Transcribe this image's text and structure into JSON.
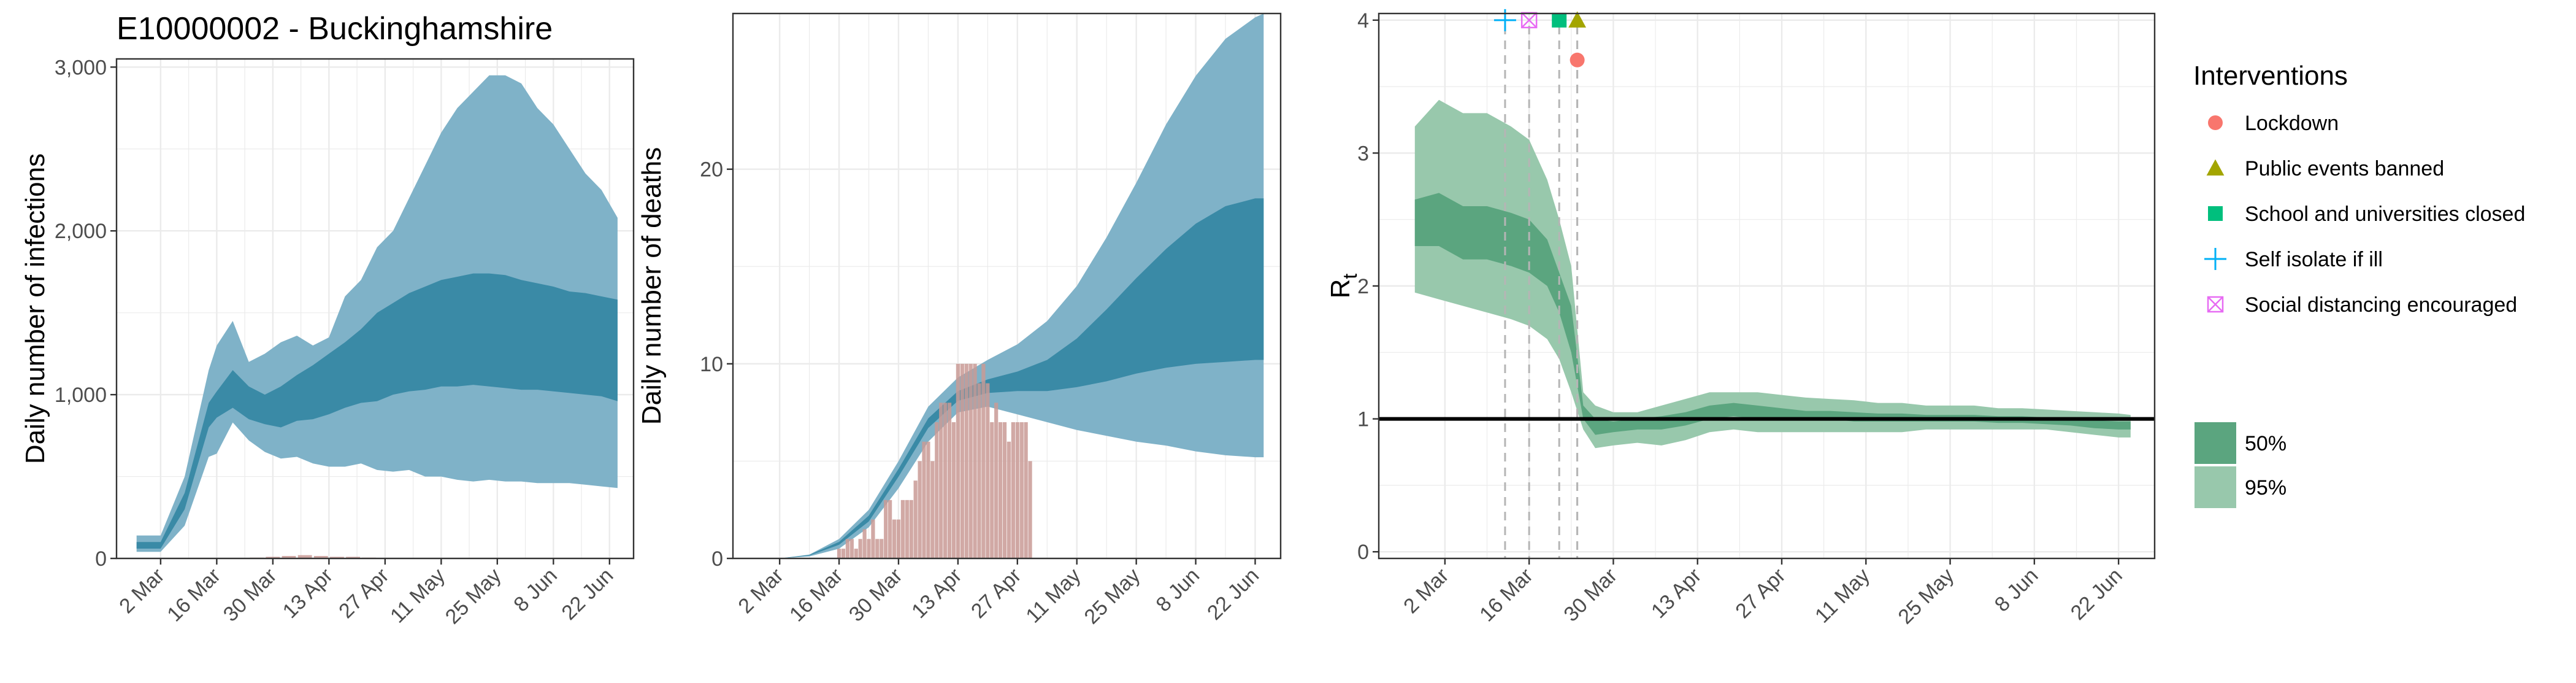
{
  "figure_title": "E10000002 - Buckinghamshire",
  "colors": {
    "infection_band": "#7fb2c8",
    "infection_inner": "#3a8aa6",
    "death_bar": "#c99a95",
    "rt_95": "#98c8ac",
    "rt_50": "#5ba57f",
    "grid": "#ebebeb",
    "lockdown": "#F8766D",
    "public_events_banned": "#A3A500",
    "school_closed": "#00BF7D",
    "self_isolate": "#00B0F6",
    "social_distancing": "#E76BF3"
  },
  "x_tick_labels": [
    "2 Mar",
    "16 Mar",
    "30 Mar",
    "13 Apr",
    "27 Apr",
    "11 May",
    "25 May",
    "8 Jun",
    "22 Jun"
  ],
  "legend": {
    "interventions_title": "Interventions",
    "interventions": [
      {
        "label": "Lockdown",
        "shape": "circle",
        "color": "#F8766D"
      },
      {
        "label": "Public events banned",
        "shape": "triangle",
        "color": "#A3A500"
      },
      {
        "label": "School and universities closed",
        "shape": "square",
        "color": "#00BF7D"
      },
      {
        "label": "Self isolate if ill",
        "shape": "plus",
        "color": "#00B0F6"
      },
      {
        "label": "Social distancing encouraged",
        "shape": "boxx",
        "color": "#E76BF3"
      }
    ],
    "ci_items": [
      {
        "label": "50%",
        "color": "#5ba57f"
      },
      {
        "label": "95%",
        "color": "#98c8ac"
      }
    ]
  },
  "chart_data": [
    {
      "type": "area",
      "ylabel": "Daily number of infections",
      "x_type": "date",
      "xlim": [
        "2020-02-20",
        "2020-06-28"
      ],
      "ylim": [
        0,
        3050
      ],
      "y_ticks": [
        0,
        1000,
        2000,
        3000
      ],
      "y_tick_labels": [
        "0",
        "1,000",
        "2,000",
        "3,000"
      ],
      "grid": true,
      "x": [
        "2020-02-25",
        "2020-03-02",
        "2020-03-08",
        "2020-03-14",
        "2020-03-16",
        "2020-03-20",
        "2020-03-24",
        "2020-03-28",
        "2020-04-01",
        "2020-04-05",
        "2020-04-09",
        "2020-04-13",
        "2020-04-17",
        "2020-04-21",
        "2020-04-25",
        "2020-04-29",
        "2020-05-03",
        "2020-05-07",
        "2020-05-11",
        "2020-05-15",
        "2020-05-19",
        "2020-05-23",
        "2020-05-27",
        "2020-05-31",
        "2020-06-04",
        "2020-06-08",
        "2020-06-12",
        "2020-06-16",
        "2020-06-20",
        "2020-06-24"
      ],
      "series": [
        {
          "band": "95%",
          "lower": [
            40,
            40,
            200,
            620,
            640,
            830,
            720,
            650,
            610,
            620,
            580,
            560,
            560,
            580,
            540,
            530,
            540,
            500,
            500,
            480,
            470,
            480,
            470,
            470,
            460,
            460,
            460,
            450,
            440,
            430
          ],
          "upper": [
            140,
            140,
            500,
            1150,
            1300,
            1450,
            1200,
            1250,
            1320,
            1360,
            1300,
            1350,
            1600,
            1700,
            1900,
            2000,
            2200,
            2400,
            2600,
            2750,
            2850,
            2950,
            2950,
            2900,
            2750,
            2650,
            2500,
            2350,
            2250,
            2080
          ]
        },
        {
          "band": "50%",
          "lower": [
            60,
            60,
            300,
            800,
            860,
            920,
            850,
            820,
            800,
            840,
            850,
            880,
            920,
            950,
            960,
            1000,
            1020,
            1030,
            1050,
            1050,
            1060,
            1050,
            1040,
            1030,
            1030,
            1020,
            1010,
            1000,
            990,
            960
          ],
          "upper": [
            100,
            100,
            400,
            950,
            1020,
            1150,
            1050,
            1000,
            1050,
            1120,
            1180,
            1250,
            1320,
            1400,
            1500,
            1560,
            1620,
            1660,
            1700,
            1720,
            1740,
            1740,
            1730,
            1700,
            1680,
            1660,
            1630,
            1620,
            1600,
            1580
          ]
        }
      ],
      "observed_cases": {
        "x": [
          "2020-03-26",
          "2020-03-30",
          "2020-04-03",
          "2020-04-07",
          "2020-04-11",
          "2020-04-15",
          "2020-04-19",
          "2020-04-23"
        ],
        "values": [
          5,
          10,
          15,
          20,
          15,
          10,
          10,
          5
        ]
      }
    },
    {
      "type": "area",
      "ylabel": "Daily number of deaths",
      "x_type": "date",
      "xlim": [
        "2020-02-20",
        "2020-06-28"
      ],
      "ylim": [
        0,
        28
      ],
      "y_ticks": [
        0,
        10,
        20
      ],
      "y_tick_labels": [
        "0",
        "10",
        "20"
      ],
      "grid": true,
      "x": [
        "2020-03-02",
        "2020-03-09",
        "2020-03-16",
        "2020-03-23",
        "2020-03-30",
        "2020-04-06",
        "2020-04-13",
        "2020-04-20",
        "2020-04-27",
        "2020-05-04",
        "2020-05-11",
        "2020-05-18",
        "2020-05-25",
        "2020-06-01",
        "2020-06-08",
        "2020-06-15",
        "2020-06-22",
        "2020-06-24"
      ],
      "series": [
        {
          "band": "95%",
          "lower": [
            0,
            0.1,
            0.5,
            1.6,
            3.6,
            6.0,
            7.5,
            7.8,
            7.4,
            7.0,
            6.6,
            6.3,
            6.0,
            5.8,
            5.5,
            5.3,
            5.2,
            5.2
          ],
          "upper": [
            0,
            0.2,
            1.0,
            2.5,
            5.0,
            7.8,
            9.3,
            10.2,
            11.0,
            12.2,
            14.0,
            16.5,
            19.3,
            22.3,
            24.8,
            26.7,
            27.8,
            28.0
          ]
        },
        {
          "band": "50%",
          "lower": [
            0,
            0.15,
            0.7,
            1.9,
            4.2,
            6.7,
            8.1,
            8.5,
            8.6,
            8.6,
            8.8,
            9.1,
            9.5,
            9.8,
            10.0,
            10.1,
            10.2,
            10.2
          ],
          "upper": [
            0,
            0.18,
            0.85,
            2.2,
            4.6,
            7.2,
            8.6,
            9.2,
            9.6,
            10.2,
            11.3,
            12.8,
            14.4,
            15.9,
            17.2,
            18.1,
            18.5,
            18.5
          ]
        }
      ],
      "observed_deaths": {
        "x": [
          "2020-03-16",
          "2020-03-17",
          "2020-03-18",
          "2020-03-19",
          "2020-03-20",
          "2020-03-21",
          "2020-03-22",
          "2020-03-23",
          "2020-03-24",
          "2020-03-25",
          "2020-03-26",
          "2020-03-27",
          "2020-03-28",
          "2020-03-29",
          "2020-03-30",
          "2020-03-31",
          "2020-04-01",
          "2020-04-02",
          "2020-04-03",
          "2020-04-04",
          "2020-04-05",
          "2020-04-06",
          "2020-04-07",
          "2020-04-08",
          "2020-04-09",
          "2020-04-10",
          "2020-04-11",
          "2020-04-12",
          "2020-04-13",
          "2020-04-14",
          "2020-04-15",
          "2020-04-16",
          "2020-04-17",
          "2020-04-18",
          "2020-04-19",
          "2020-04-20",
          "2020-04-21",
          "2020-04-22",
          "2020-04-23",
          "2020-04-24",
          "2020-04-25",
          "2020-04-26",
          "2020-04-27",
          "2020-04-28",
          "2020-04-29",
          "2020-04-30"
        ],
        "values": [
          0.5,
          0.5,
          1,
          1,
          0.5,
          1,
          1.5,
          1,
          2,
          1,
          1,
          3,
          3,
          2,
          2,
          3,
          3,
          3,
          4,
          5,
          6,
          6,
          5,
          7,
          8,
          8,
          8,
          7,
          10,
          10,
          10,
          10,
          10,
          9,
          10,
          9,
          7,
          8,
          7,
          7,
          6,
          7,
          7,
          7,
          7,
          5
        ]
      }
    },
    {
      "type": "area",
      "ylabel": "R",
      "ylabel_subscript": "t",
      "x_type": "date",
      "xlim": [
        "2020-02-20",
        "2020-06-28"
      ],
      "ylim": [
        -0.05,
        4.05
      ],
      "y_ticks": [
        0,
        1,
        2,
        3,
        4
      ],
      "y_tick_labels": [
        "0",
        "1",
        "2",
        "3",
        "4"
      ],
      "grid": true,
      "reference_line": 1,
      "x": [
        "2020-02-26",
        "2020-03-01",
        "2020-03-05",
        "2020-03-09",
        "2020-03-13",
        "2020-03-16",
        "2020-03-19",
        "2020-03-21",
        "2020-03-23",
        "2020-03-25",
        "2020-03-27",
        "2020-03-30",
        "2020-04-03",
        "2020-04-07",
        "2020-04-11",
        "2020-04-15",
        "2020-04-19",
        "2020-04-23",
        "2020-04-27",
        "2020-05-01",
        "2020-05-05",
        "2020-05-09",
        "2020-05-13",
        "2020-05-17",
        "2020-05-21",
        "2020-05-25",
        "2020-05-29",
        "2020-06-02",
        "2020-06-06",
        "2020-06-10",
        "2020-06-14",
        "2020-06-18",
        "2020-06-22",
        "2020-06-24"
      ],
      "series": [
        {
          "band": "95%",
          "lower": [
            1.95,
            1.9,
            1.85,
            1.8,
            1.75,
            1.7,
            1.6,
            1.45,
            1.2,
            0.92,
            0.78,
            0.8,
            0.82,
            0.8,
            0.84,
            0.9,
            0.92,
            0.9,
            0.9,
            0.9,
            0.9,
            0.9,
            0.9,
            0.9,
            0.92,
            0.92,
            0.92,
            0.92,
            0.92,
            0.92,
            0.9,
            0.88,
            0.86,
            0.86
          ],
          "upper": [
            3.2,
            3.4,
            3.3,
            3.3,
            3.2,
            3.1,
            2.8,
            2.5,
            2.15,
            1.2,
            1.1,
            1.05,
            1.05,
            1.1,
            1.15,
            1.2,
            1.2,
            1.2,
            1.18,
            1.16,
            1.15,
            1.14,
            1.12,
            1.12,
            1.1,
            1.1,
            1.1,
            1.08,
            1.08,
            1.07,
            1.06,
            1.05,
            1.04,
            1.03
          ]
        },
        {
          "band": "50%",
          "lower": [
            2.3,
            2.3,
            2.2,
            2.2,
            2.15,
            2.1,
            2.0,
            1.8,
            1.5,
            1.0,
            0.88,
            0.9,
            0.92,
            0.92,
            0.95,
            1.0,
            1.02,
            1.0,
            1.0,
            1.0,
            1.0,
            0.98,
            0.98,
            0.98,
            0.98,
            0.98,
            0.98,
            0.97,
            0.97,
            0.96,
            0.95,
            0.93,
            0.92,
            0.92
          ],
          "upper": [
            2.65,
            2.7,
            2.6,
            2.6,
            2.55,
            2.5,
            2.35,
            2.1,
            1.85,
            1.1,
            1.0,
            0.98,
            1.0,
            1.02,
            1.05,
            1.1,
            1.12,
            1.1,
            1.08,
            1.06,
            1.06,
            1.05,
            1.04,
            1.04,
            1.03,
            1.03,
            1.03,
            1.02,
            1.02,
            1.01,
            1.0,
            0.99,
            0.98,
            0.98
          ]
        }
      ],
      "interventions": [
        {
          "name": "Self isolate if ill",
          "date": "2020-03-12",
          "shape": "plus",
          "color": "#00B0F6",
          "y": 4.0
        },
        {
          "name": "Social distancing encouraged",
          "date": "2020-03-16",
          "shape": "boxx",
          "color": "#E76BF3",
          "y": 4.0
        },
        {
          "name": "School and universities closed",
          "date": "2020-03-21",
          "shape": "square",
          "color": "#00BF7D",
          "y": 4.0
        },
        {
          "name": "Public events banned",
          "date": "2020-03-24",
          "shape": "triangle",
          "color": "#A3A500",
          "y": 4.0
        },
        {
          "name": "Lockdown",
          "date": "2020-03-24",
          "shape": "circle",
          "color": "#F8766D",
          "y": 3.7
        }
      ]
    }
  ]
}
